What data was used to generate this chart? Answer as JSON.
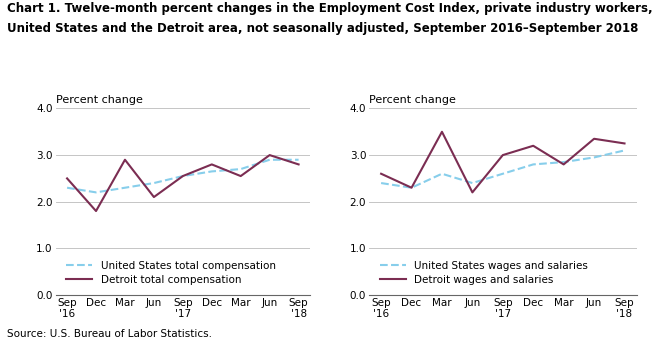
{
  "title_line1": "Chart 1. Twelve-month percent changes in the Employment Cost Index, private industry workers,",
  "title_line2": "United States and the Detroit area, not seasonally adjusted, September 2016–September 2018",
  "source": "Source: U.S. Bureau of Labor Statistics.",
  "ylabel": "Percent change",
  "x_labels": [
    "Sep\n'16",
    "Dec",
    "Mar",
    "Jun",
    "Sep\n'17",
    "Dec",
    "Mar",
    "Jun",
    "Sep\n'18"
  ],
  "chart1": {
    "us_total": [
      2.3,
      2.2,
      2.3,
      2.4,
      2.55,
      2.65,
      2.7,
      2.9,
      2.9
    ],
    "detroit_total": [
      2.5,
      1.8,
      2.9,
      2.1,
      2.55,
      2.8,
      2.55,
      3.0,
      2.8
    ],
    "legend1": "United States total compensation",
    "legend2": "Detroit total compensation"
  },
  "chart2": {
    "us_wages": [
      2.4,
      2.3,
      2.6,
      2.4,
      2.6,
      2.8,
      2.85,
      2.95,
      3.1
    ],
    "detroit_wages": [
      2.6,
      2.3,
      3.5,
      2.2,
      3.0,
      3.2,
      2.8,
      3.35,
      3.25
    ],
    "legend1": "United States wages and salaries",
    "legend2": "Detroit wages and salaries"
  },
  "us_color": "#87CEEB",
  "detroit_color": "#7B2D52",
  "ylim": [
    0.0,
    4.0
  ],
  "yticks": [
    0.0,
    1.0,
    2.0,
    3.0,
    4.0
  ],
  "grid_color": "#bbbbbb",
  "background_color": "#ffffff",
  "title_fontsize": 8.5,
  "label_fontsize": 8,
  "tick_fontsize": 7.5,
  "legend_fontsize": 7.5,
  "source_fontsize": 7.5
}
